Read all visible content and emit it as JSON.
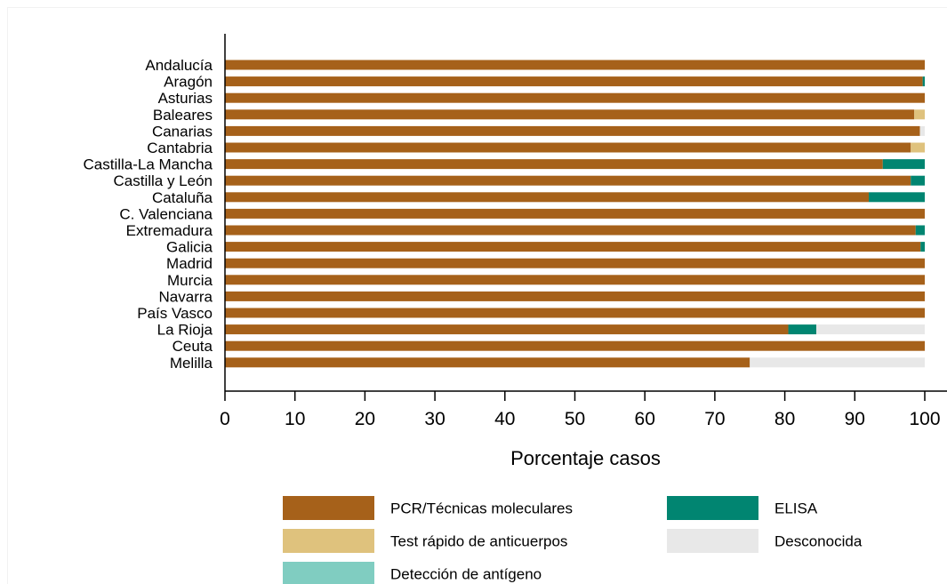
{
  "chart_data": {
    "type": "bar",
    "orientation": "horizontal",
    "stacked": true,
    "xlabel": "Porcentaje casos",
    "xlim": [
      0,
      100
    ],
    "xticks": [
      0,
      10,
      20,
      30,
      40,
      50,
      60,
      70,
      80,
      90,
      100
    ],
    "grid": false,
    "legend_position": "bottom",
    "categories": [
      "Andalucía",
      "Aragón",
      "Asturias",
      "Baleares",
      "Canarias",
      "Cantabria",
      "Castilla-La Mancha",
      "Castilla y León",
      "Cataluña",
      "C. Valenciana",
      "Extremadura",
      "Galicia",
      "Madrid",
      "Murcia",
      "Navarra",
      "País Vasco",
      "La Rioja",
      "Ceuta",
      "Melilla"
    ],
    "series": [
      {
        "name": "PCR/Técnicas moleculares",
        "color": "#a6611a",
        "values": [
          100,
          99.7,
          100,
          98.5,
          99.3,
          98,
          94,
          98,
          92,
          100,
          98.7,
          99.4,
          100,
          100,
          100,
          100,
          80.5,
          100,
          75
        ]
      },
      {
        "name": "Test rápido de anticuerpos",
        "color": "#dfc27d",
        "values": [
          0,
          0,
          0,
          1.5,
          0,
          2,
          0,
          0,
          0,
          0,
          0,
          0,
          0,
          0,
          0,
          0,
          0,
          0,
          0
        ]
      },
      {
        "name": "Detección de antígeno",
        "color": "#80cdc1",
        "values": [
          0,
          0,
          0,
          0,
          0,
          0,
          0,
          0,
          0,
          0,
          0,
          0,
          0,
          0,
          0,
          0,
          0,
          0,
          0
        ]
      },
      {
        "name": "ELISA",
        "color": "#018571",
        "values": [
          0,
          0.3,
          0,
          0,
          0,
          0,
          6,
          2,
          8,
          0,
          1.3,
          0.6,
          0,
          0,
          0,
          0,
          4,
          0,
          0
        ]
      },
      {
        "name": "Desconocida",
        "color": "#e8e8e8",
        "values": [
          0,
          0,
          0,
          0,
          0.7,
          0,
          0,
          0,
          0,
          0,
          0,
          0,
          0,
          0,
          0,
          0,
          15.5,
          0,
          25
        ]
      }
    ],
    "legend_order": [
      "PCR/Técnicas moleculares",
      "ELISA",
      "Test rápido de anticuerpos",
      "Desconocida",
      "Detección de antígeno"
    ]
  }
}
